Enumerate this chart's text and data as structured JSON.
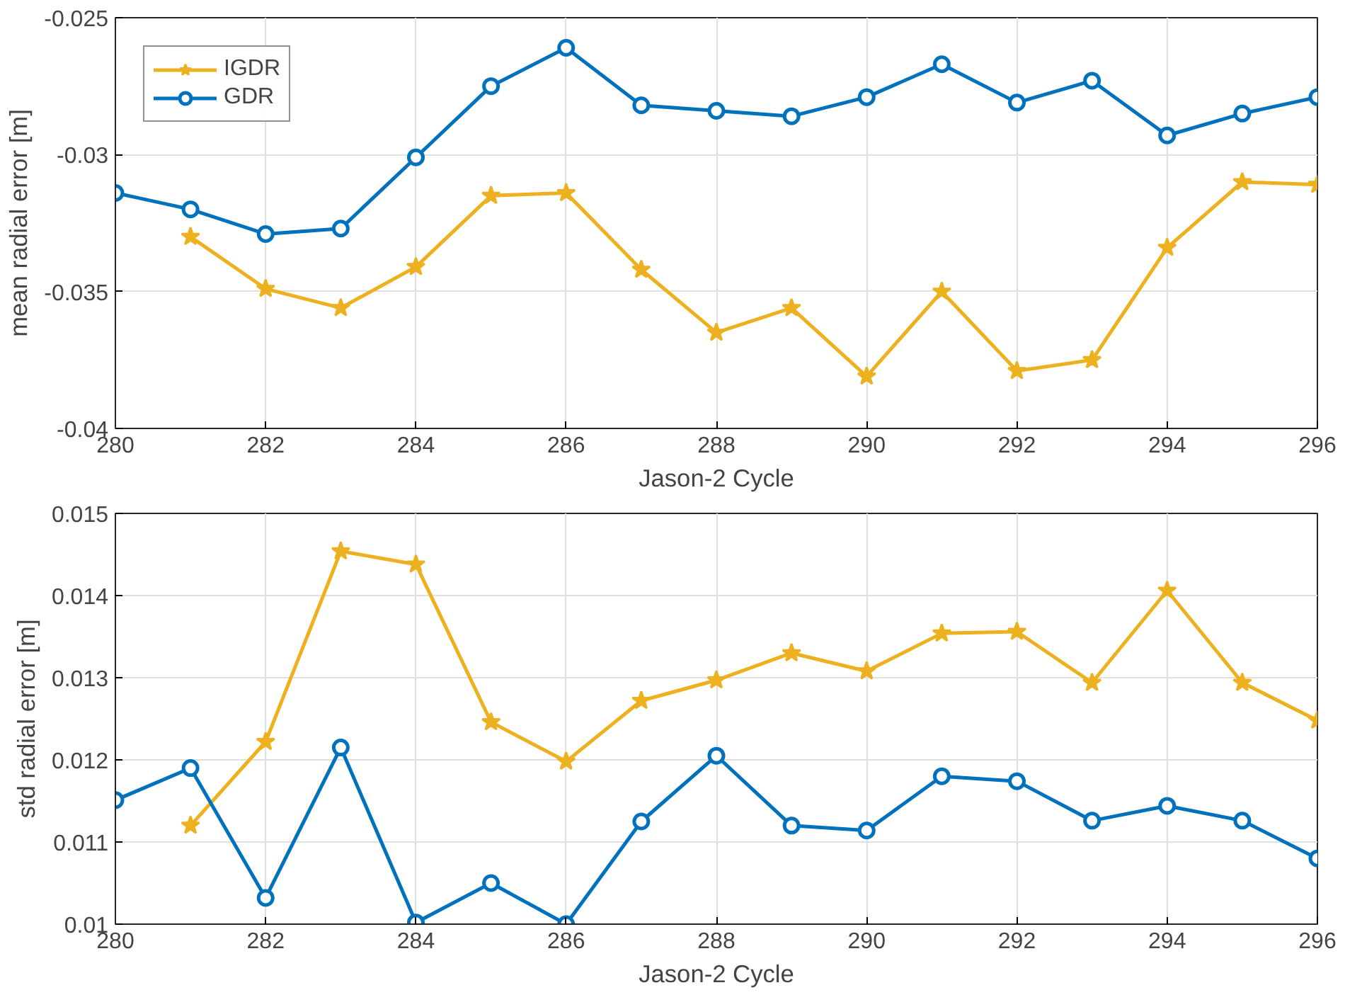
{
  "chart_data": [
    {
      "type": "line",
      "ylabel": "mean radial error [m]",
      "xlabel": "Jason-2 Cycle",
      "x": [
        280,
        281,
        282,
        283,
        284,
        285,
        286,
        287,
        288,
        289,
        290,
        291,
        292,
        293,
        294,
        295,
        296
      ],
      "xlim": [
        280,
        296
      ],
      "xticks": [
        280,
        282,
        284,
        286,
        288,
        290,
        292,
        294,
        296
      ],
      "ylim": [
        -0.04,
        -0.025
      ],
      "yticks": [
        -0.04,
        -0.035,
        -0.03,
        -0.025
      ],
      "grid": true,
      "legend": "top left",
      "series": [
        {
          "name": "IGDR",
          "color": "#edb120",
          "marker": "star",
          "values": [
            null,
            -0.033,
            -0.0349,
            -0.0356,
            -0.0341,
            -0.0315,
            -0.0314,
            -0.0342,
            -0.0365,
            -0.0356,
            -0.0381,
            -0.035,
            -0.0379,
            -0.0375,
            -0.0334,
            -0.031,
            -0.0311
          ]
        },
        {
          "name": "GDR",
          "color": "#0072bd",
          "marker": "circle",
          "values": [
            -0.0314,
            -0.032,
            -0.0329,
            -0.0327,
            -0.0301,
            -0.0275,
            -0.0261,
            -0.0282,
            -0.0284,
            -0.0286,
            -0.0279,
            -0.0267,
            -0.0281,
            -0.0273,
            -0.0293,
            -0.0285,
            -0.0279
          ]
        }
      ]
    },
    {
      "type": "line",
      "ylabel": "std radial error [m]",
      "xlabel": "Jason-2 Cycle",
      "x": [
        280,
        281,
        282,
        283,
        284,
        285,
        286,
        287,
        288,
        289,
        290,
        291,
        292,
        293,
        294,
        295,
        296
      ],
      "xlim": [
        280,
        296
      ],
      "xticks": [
        280,
        282,
        284,
        286,
        288,
        290,
        292,
        294,
        296
      ],
      "ylim": [
        0.01,
        0.015
      ],
      "yticks": [
        0.01,
        0.011,
        0.012,
        0.013,
        0.014,
        0.015
      ],
      "grid": true,
      "series": [
        {
          "color": "#edb120",
          "marker": "star",
          "values": [
            null,
            0.0112,
            0.01222,
            0.01454,
            0.01438,
            0.01246,
            0.01198,
            0.01272,
            0.01297,
            0.0133,
            0.01308,
            0.01354,
            0.01356,
            0.01294,
            0.01406,
            0.01294,
            0.01248
          ]
        },
        {
          "color": "#0072bd",
          "marker": "circle",
          "values": [
            0.01151,
            0.0119,
            0.01032,
            0.01215,
            0.01002,
            0.0105,
            0.01,
            0.01125,
            0.01205,
            0.0112,
            0.01114,
            0.0118,
            0.01174,
            0.01126,
            0.01144,
            0.01126,
            0.0108
          ]
        }
      ]
    }
  ]
}
